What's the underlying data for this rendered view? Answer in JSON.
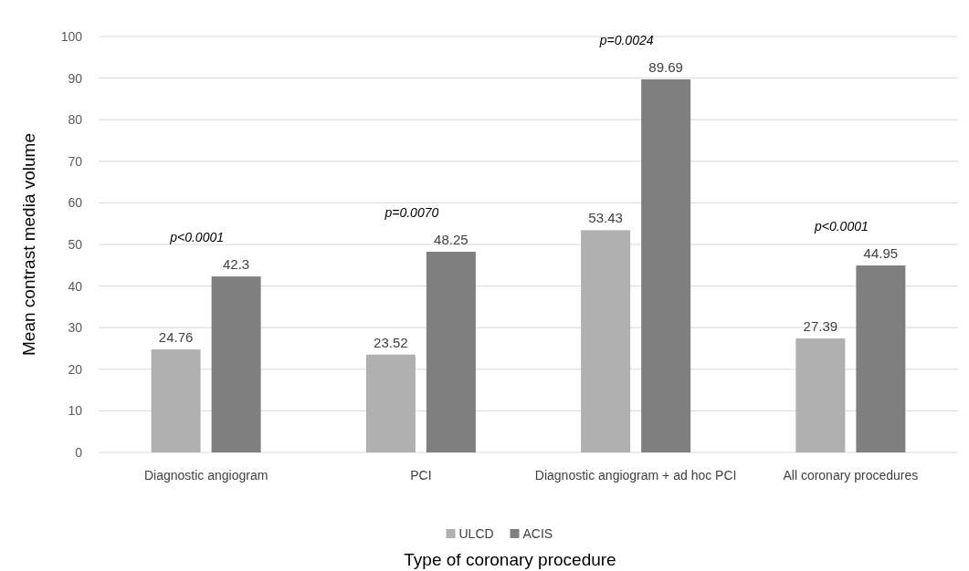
{
  "chart_data": {
    "type": "bar",
    "xlabel": "Type of coronary procedure",
    "ylabel": "Mean contrast media volume",
    "categories": [
      "Diagnostic angiogram",
      "PCI",
      "Diagnostic angiogram  + ad hoc PCI",
      "All coronary procedures"
    ],
    "series": [
      {
        "name": "ULCD",
        "color": "#b0b0b0",
        "values": [
          24.76,
          23.52,
          53.43,
          27.39
        ]
      },
      {
        "name": "ACIS",
        "color": "#7f7f7f",
        "values": [
          42.3,
          48.25,
          89.69,
          44.95
        ]
      }
    ],
    "ylim": [
      0,
      100
    ],
    "yticks": [
      0,
      10,
      20,
      30,
      40,
      50,
      60,
      70,
      80,
      90,
      100
    ],
    "grid": "y",
    "legend": "bottom",
    "data_labels": true,
    "annotations": [
      "p<0.0001",
      "p=0.0070",
      "p=0.0024",
      "p<0.0001"
    ]
  }
}
